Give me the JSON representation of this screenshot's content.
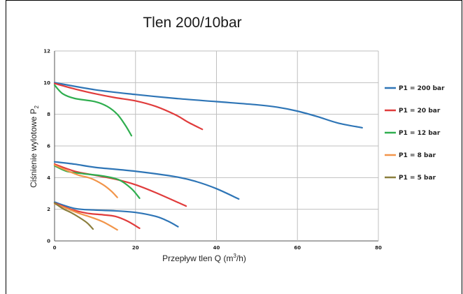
{
  "chart_data": {
    "type": "line",
    "title": "Tlen 200/10bar",
    "xlabel": "Przepływ tlen Q (m",
    "xlabel_sup": "3",
    "xlabel_end": "/h)",
    "ylabel": "Ciśnienie wylotowe P",
    "ylabel_sub": "2",
    "xlim": [
      0,
      80
    ],
    "ylim": [
      0,
      12
    ],
    "x_ticks": [
      0,
      20,
      40,
      60,
      80
    ],
    "y_ticks": [
      0,
      2,
      4,
      6,
      8,
      10,
      12
    ],
    "grid": true,
    "legend_position": "right",
    "series": [
      {
        "name": "P1 = 200 bar",
        "color": "#2e75b6",
        "points": [
          [
            0,
            10
          ],
          [
            10,
            9.55
          ],
          [
            20,
            9.25
          ],
          [
            30,
            9.0
          ],
          [
            40,
            8.8
          ],
          [
            50,
            8.6
          ],
          [
            55,
            8.45
          ],
          [
            60,
            8.2
          ],
          [
            65,
            7.85
          ],
          [
            70,
            7.45
          ],
          [
            76,
            7.15
          ]
        ]
      },
      {
        "name": "P1 = 20 bar",
        "color": "#e03c3c",
        "points": [
          [
            0,
            9.95
          ],
          [
            5,
            9.6
          ],
          [
            10,
            9.3
          ],
          [
            15,
            9.05
          ],
          [
            20,
            8.85
          ],
          [
            25,
            8.5
          ],
          [
            30,
            7.95
          ],
          [
            33,
            7.5
          ],
          [
            36.5,
            7.05
          ]
        ]
      },
      {
        "name": "P1 = 12 bar",
        "color": "#2fae4f",
        "points": [
          [
            0,
            9.85
          ],
          [
            2,
            9.3
          ],
          [
            5,
            9.0
          ],
          [
            10,
            8.8
          ],
          [
            13,
            8.5
          ],
          [
            15.5,
            8.0
          ],
          [
            17.5,
            7.3
          ],
          [
            19,
            6.65
          ]
        ]
      },
      {
        "name": "P1 = 200 bar",
        "color": "#2e75b6",
        "points": [
          [
            0,
            5.0
          ],
          [
            5,
            4.85
          ],
          [
            10,
            4.65
          ],
          [
            20,
            4.4
          ],
          [
            30,
            4.05
          ],
          [
            35,
            3.75
          ],
          [
            40,
            3.3
          ],
          [
            45.5,
            2.65
          ]
        ]
      },
      {
        "name": "P1 = 20 bar",
        "color": "#e03c3c",
        "points": [
          [
            0,
            4.85
          ],
          [
            5,
            4.4
          ],
          [
            10,
            4.15
          ],
          [
            15,
            3.9
          ],
          [
            20,
            3.55
          ],
          [
            25,
            3.05
          ],
          [
            32.5,
            2.2
          ]
        ]
      },
      {
        "name": "P1 = 12 bar",
        "color": "#2fae4f",
        "points": [
          [
            0,
            4.75
          ],
          [
            3,
            4.4
          ],
          [
            7,
            4.25
          ],
          [
            12,
            4.1
          ],
          [
            16,
            3.85
          ],
          [
            19,
            3.3
          ],
          [
            21,
            2.7
          ]
        ]
      },
      {
        "name": "P1 = 8 bar",
        "color": "#f2954a",
        "points": [
          [
            0,
            4.8
          ],
          [
            3,
            4.45
          ],
          [
            6,
            4.15
          ],
          [
            9,
            3.95
          ],
          [
            12,
            3.55
          ],
          [
            14,
            3.15
          ],
          [
            15.5,
            2.75
          ]
        ]
      },
      {
        "name": "P1 = 200 bar",
        "color": "#2e75b6",
        "points": [
          [
            0,
            2.45
          ],
          [
            5,
            2.05
          ],
          [
            10,
            1.95
          ],
          [
            15,
            1.9
          ],
          [
            20,
            1.8
          ],
          [
            25,
            1.55
          ],
          [
            28,
            1.25
          ],
          [
            30.5,
            0.9
          ]
        ]
      },
      {
        "name": "P1 = 20 bar",
        "color": "#e03c3c",
        "points": [
          [
            0,
            2.4
          ],
          [
            4,
            2.0
          ],
          [
            8,
            1.75
          ],
          [
            12,
            1.65
          ],
          [
            15,
            1.55
          ],
          [
            18,
            1.25
          ],
          [
            21,
            0.8
          ]
        ]
      },
      {
        "name": "P1 = 8 bar",
        "color": "#f2954a",
        "points": [
          [
            0,
            2.35
          ],
          [
            3,
            2.05
          ],
          [
            6,
            1.75
          ],
          [
            9,
            1.5
          ],
          [
            12,
            1.2
          ],
          [
            15.5,
            0.7
          ]
        ]
      },
      {
        "name": "P1 = 5 bar",
        "color": "#8b7e3d",
        "points": [
          [
            0,
            2.4
          ],
          [
            2,
            2.05
          ],
          [
            4,
            1.8
          ],
          [
            6,
            1.5
          ],
          [
            8,
            1.15
          ],
          [
            9.5,
            0.75
          ]
        ]
      }
    ],
    "legend": [
      {
        "name": "P1 = 200 bar",
        "color": "#2e75b6"
      },
      {
        "name": "P1 = 20 bar",
        "color": "#e03c3c"
      },
      {
        "name": "P1 = 12 bar",
        "color": "#2fae4f"
      },
      {
        "name": "P1 = 8 bar",
        "color": "#f2954a"
      },
      {
        "name": "P1 = 5 bar",
        "color": "#8b7e3d"
      }
    ]
  }
}
